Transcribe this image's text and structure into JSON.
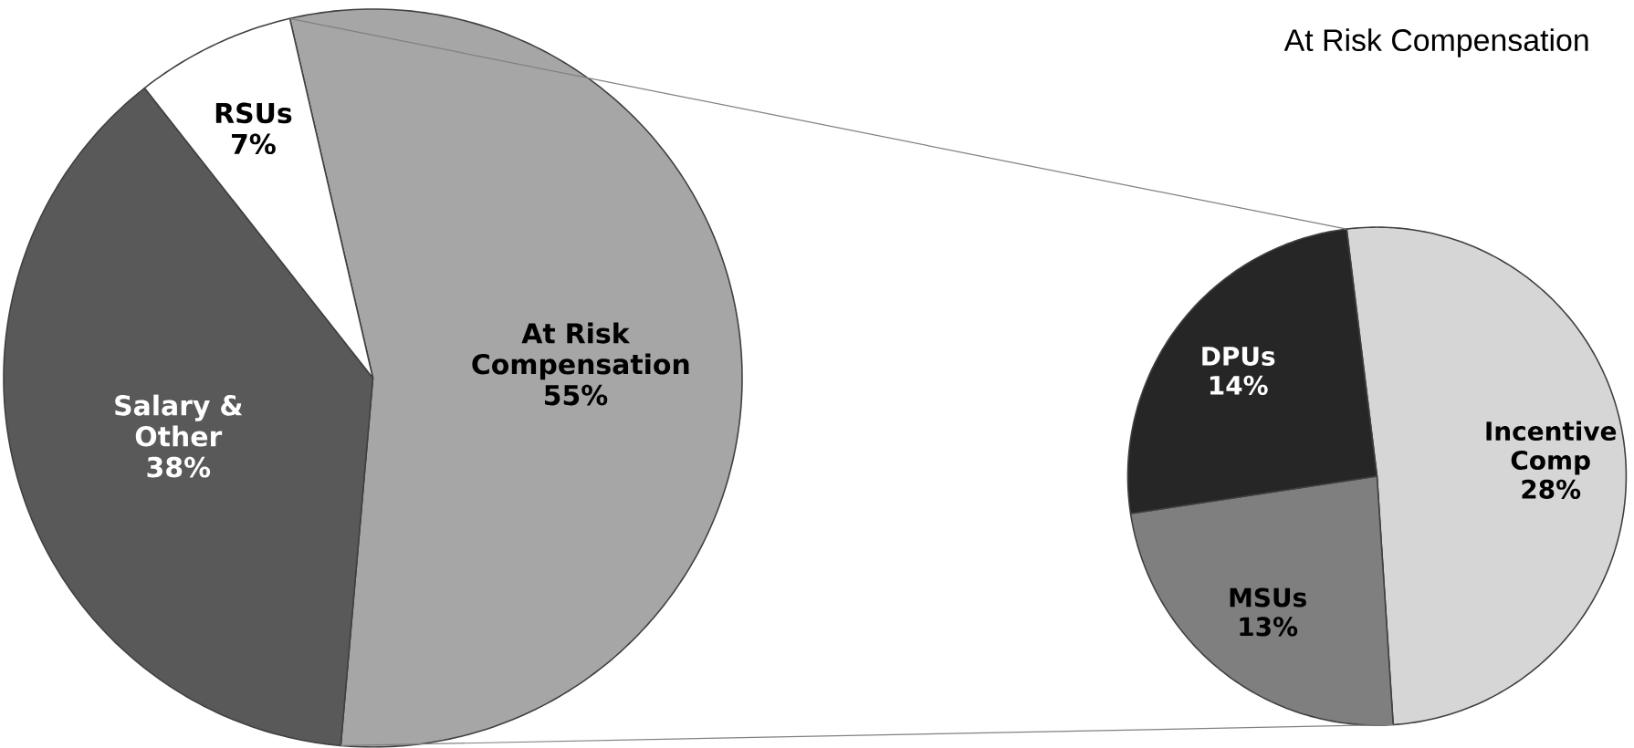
{
  "chart_data": [
    {
      "type": "pie",
      "categories": [
        "At Risk Compensation",
        "Salary & Other",
        "RSUs"
      ],
      "values": [
        55,
        38,
        7
      ],
      "colors": [
        "#a6a6a6",
        "#595959",
        "#ffffff"
      ],
      "value_labels": [
        "55%",
        "38%",
        "7%"
      ]
    },
    {
      "type": "pie",
      "title": "At Risk Compensation",
      "categories": [
        "Incentive Comp",
        "MSUs",
        "DPUs"
      ],
      "values": [
        28,
        13,
        14
      ],
      "colors": [
        "#d6d6d6",
        "#7f7f7f",
        "#262626"
      ],
      "value_labels": [
        "28%",
        "13%",
        "14%"
      ]
    }
  ]
}
